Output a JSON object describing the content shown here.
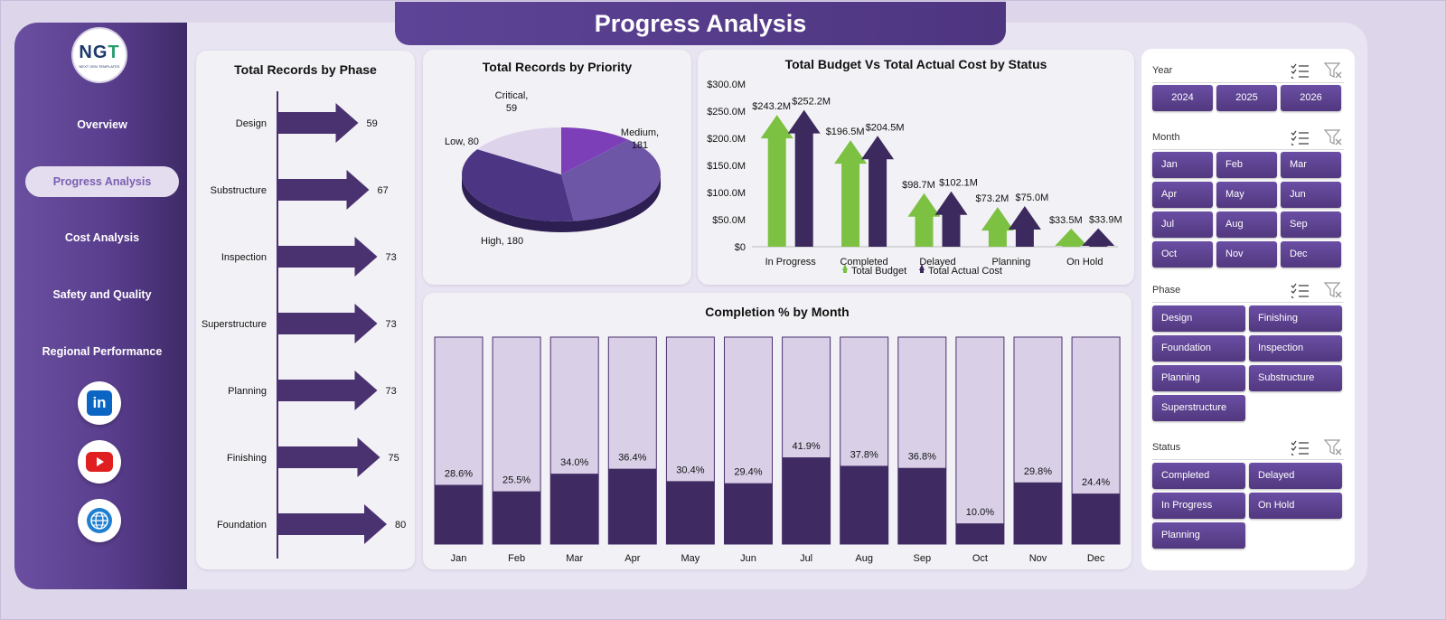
{
  "title": "Progress Analysis",
  "logo": {
    "text_a": "NG",
    "text_b": "T",
    "subtitle": "NEXT GEN TEMPLATES"
  },
  "nav": [
    {
      "label": "Overview",
      "active": false
    },
    {
      "label": "Progress Analysis",
      "active": true
    },
    {
      "label": "Cost Analysis",
      "active": false
    },
    {
      "label": "Safety and Quality",
      "active": false
    },
    {
      "label": "Regional Performance",
      "active": false
    }
  ],
  "social": [
    {
      "name": "linkedin-icon",
      "label": "in"
    },
    {
      "name": "youtube-icon"
    },
    {
      "name": "globe-icon"
    }
  ],
  "colors": {
    "accent": "#5a3e8e",
    "arrow": "#4a3170",
    "light_bar": "#d9d0e8",
    "dark_bar": "#3f2a62",
    "green": "#7cc142",
    "dark_arrow": "#3c2a5e"
  },
  "charts": {
    "phase": {
      "title": "Total Records by Phase",
      "chart_data": {
        "type": "bar",
        "categories": [
          "Design",
          "Substructure",
          "Inspection",
          "Superstructure",
          "Planning",
          "Finishing",
          "Foundation"
        ],
        "values": [
          59,
          67,
          73,
          73,
          73,
          75,
          80
        ]
      }
    },
    "priority": {
      "title": "Total Records by Priority",
      "chart_data": {
        "type": "pie",
        "categories": [
          "Critical",
          "Medium",
          "High",
          "Low"
        ],
        "values": [
          59,
          181,
          180,
          80
        ],
        "labels": [
          "Critical,",
          "Medium,",
          "High,",
          "Low,"
        ]
      }
    },
    "budget": {
      "title": "Total Budget Vs Total Actual Cost by Status",
      "chart_data": {
        "type": "bar",
        "categories": [
          "In Progress",
          "Completed",
          "Delayed",
          "Planning",
          "On Hold"
        ],
        "series": [
          {
            "name": "Total Budget",
            "values": [
              243.2,
              196.5,
              98.7,
              73.2,
              33.5
            ],
            "labels": [
              "$243.2M",
              "$196.5M",
              "$98.7M",
              "$73.2M",
              "$33.5M"
            ]
          },
          {
            "name": "Total Actual Cost",
            "values": [
              252.2,
              204.5,
              102.1,
              75.0,
              33.9
            ],
            "labels": [
              "$252.2M",
              "$204.5M",
              "$102.1M",
              "$75.0M",
              "$33.9M"
            ]
          }
        ],
        "ylim": [
          0,
          300
        ],
        "yticks": [
          "$0",
          "$50.0M",
          "$100.0M",
          "$150.0M",
          "$200.0M",
          "$250.0M",
          "$300.0M"
        ]
      }
    },
    "completion": {
      "title": "Completion % by Month",
      "chart_data": {
        "type": "bar",
        "categories": [
          "Jan",
          "Feb",
          "Mar",
          "Apr",
          "May",
          "Jun",
          "Jul",
          "Aug",
          "Sep",
          "Oct",
          "Nov",
          "Dec"
        ],
        "values": [
          28.6,
          25.5,
          34.0,
          36.4,
          30.4,
          29.4,
          41.9,
          37.8,
          36.8,
          10.0,
          29.8,
          24.4
        ],
        "labels": [
          "28.6%",
          "25.5%",
          "34.0%",
          "36.4%",
          "30.4%",
          "29.4%",
          "41.9%",
          "37.8%",
          "36.8%",
          "10.0%",
          "29.8%",
          "24.4%"
        ],
        "ylim": [
          0,
          100
        ]
      }
    }
  },
  "slicers": {
    "year": {
      "label": "Year",
      "options": [
        "2024",
        "2025",
        "2026"
      ]
    },
    "month": {
      "label": "Month",
      "options": [
        "Jan",
        "Feb",
        "Mar",
        "Apr",
        "May",
        "Jun",
        "Jul",
        "Aug",
        "Sep",
        "Oct",
        "Nov",
        "Dec"
      ]
    },
    "phase": {
      "label": "Phase",
      "options": [
        "Design",
        "Finishing",
        "Foundation",
        "Inspection",
        "Planning",
        "Substructure",
        "Superstructure"
      ]
    },
    "status": {
      "label": "Status",
      "options": [
        "Completed",
        "Delayed",
        "In Progress",
        "On Hold",
        "Planning"
      ]
    }
  }
}
